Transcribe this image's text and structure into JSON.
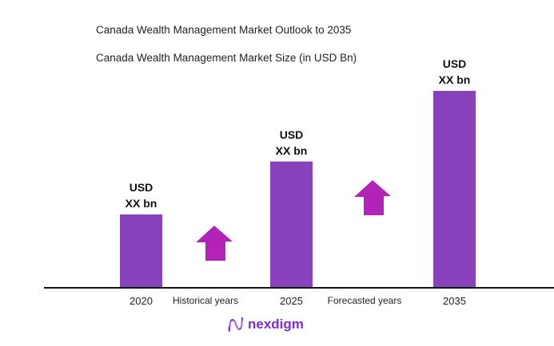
{
  "chart_data": {
    "type": "bar",
    "title": "Canada Wealth Management Market Outlook to 2035",
    "subtitle": "Canada Wealth Management Market Size (in USD Bn)",
    "categories": [
      "2020",
      "2025",
      "2035"
    ],
    "data_labels": [
      [
        "USD",
        "XX bn"
      ],
      [
        "USD",
        "XX bn"
      ],
      [
        "USD",
        "XX bn"
      ]
    ],
    "relative_size": [
      0.37,
      0.64,
      1.0
    ],
    "period_labels": [
      "Historical years",
      "Forecasted years"
    ],
    "bar_color": "#8842BB",
    "arrow_color": "#B423B8",
    "grid": false
  },
  "brand": "nexdigm"
}
